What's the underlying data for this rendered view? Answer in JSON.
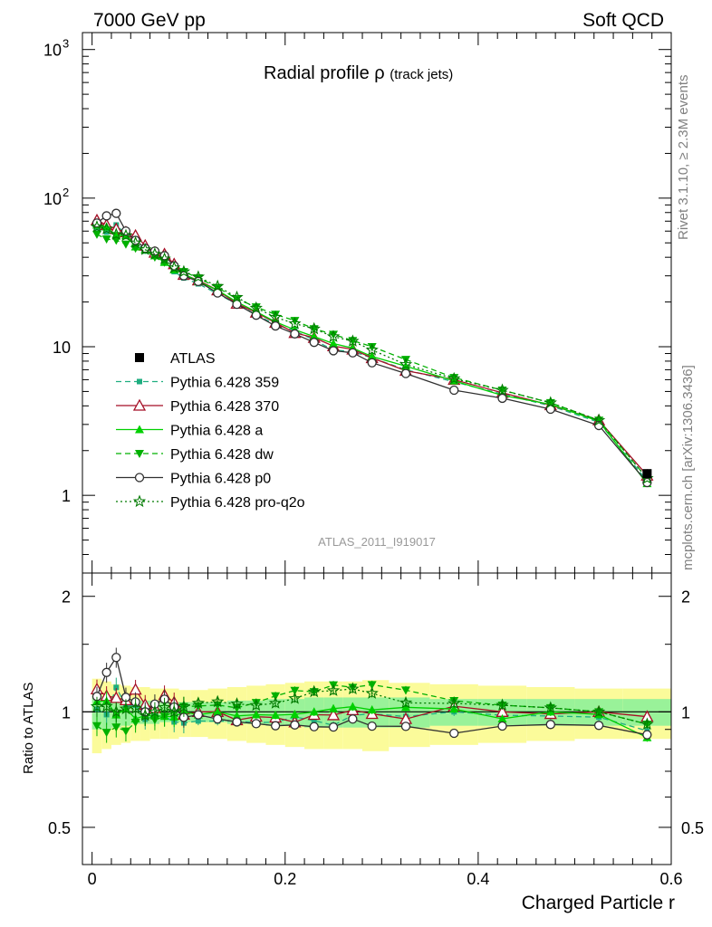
{
  "header": {
    "left": "7000 GeV pp",
    "right": "Soft QCD",
    "side_top": "Rivet 3.1.10, ≥ 2.3M events",
    "side_bottom": "mcplots.cern.ch [arXiv:1306.3436]"
  },
  "chart_data": {
    "type": "line",
    "title_main": "Radial profile",
    "title_symbol": "ρ",
    "title_sub": "(track jets)",
    "analysis_id": "ATLAS_2011_I919017",
    "xlabel": "Charged Particle r",
    "ratio_ylabel": "Ratio to ATLAS",
    "xlim": [
      -0.01,
      0.6
    ],
    "ylim_main": [
      0.3,
      1300
    ],
    "yscale_main": "log",
    "ylim_ratio": [
      0.4,
      2.3
    ],
    "yscale_ratio": "log",
    "x_ticks": [
      "0",
      "0.2",
      "0.4",
      "0.6"
    ],
    "main_y_ticks": [
      "1",
      "10",
      "10^2",
      "10^3"
    ],
    "ratio_y_ticks": [
      "0.5",
      "1",
      "2"
    ],
    "legend_position": "lower-left",
    "x": [
      0.005,
      0.015,
      0.025,
      0.035,
      0.045,
      0.055,
      0.065,
      0.075,
      0.085,
      0.095,
      0.11,
      0.13,
      0.15,
      0.17,
      0.19,
      0.21,
      0.23,
      0.25,
      0.27,
      0.29,
      0.325,
      0.375,
      0.425,
      0.475,
      0.525,
      0.575
    ],
    "band_yellow_half": [
      0.22,
      0.2,
      0.18,
      0.17,
      0.16,
      0.16,
      0.15,
      0.15,
      0.15,
      0.14,
      0.14,
      0.15,
      0.16,
      0.17,
      0.18,
      0.19,
      0.2,
      0.2,
      0.2,
      0.21,
      0.19,
      0.18,
      0.17,
      0.16,
      0.15,
      0.15
    ],
    "band_green_half": [
      0.1,
      0.1,
      0.09,
      0.08,
      0.07,
      0.07,
      0.07,
      0.06,
      0.06,
      0.06,
      0.06,
      0.06,
      0.07,
      0.07,
      0.08,
      0.08,
      0.09,
      0.09,
      0.09,
      0.09,
      0.09,
      0.08,
      0.08,
      0.08,
      0.08,
      0.08
    ],
    "data": {
      "name": "ATLAS",
      "values": [
        62,
        60,
        57,
        55,
        49,
        46,
        42,
        38,
        34,
        31,
        28,
        24,
        20.5,
        17.5,
        15,
        13.2,
        11.7,
        10.3,
        9.5,
        8.5,
        7.2,
        5.8,
        4.9,
        4.1,
        3.2,
        1.4
      ]
    },
    "series": [
      {
        "name": "Pythia 6.428 359",
        "color": "#1fae80",
        "dash": "dashed",
        "marker": "square-small",
        "values": [
          63,
          59,
          66,
          57,
          51,
          44,
          41,
          37,
          32,
          29,
          26.5,
          22.7,
          19.4,
          16.4,
          14.1,
          12.8,
          11.1,
          9.5,
          9.3,
          8.4,
          7.0,
          5.8,
          4.8,
          4.0,
          3.1,
          1.25
        ]
      },
      {
        "name": "Pythia 6.428 370",
        "color": "#a50f26",
        "dash": "solid",
        "marker": "triangle-open",
        "values": [
          71,
          66,
          62,
          59,
          56,
          48,
          43,
          42,
          36,
          30.5,
          28,
          24,
          19.5,
          17,
          14.5,
          12.4,
          11.5,
          10.1,
          9.6,
          8.4,
          6.9,
          6.0,
          4.9,
          4.05,
          3.2,
          1.36
        ]
      },
      {
        "name": "Pythia 6.428 a",
        "color": "#00d000",
        "dash": "solid",
        "marker": "triangle",
        "values": [
          66,
          64,
          56,
          56,
          47,
          45,
          41,
          37,
          33,
          31,
          27.5,
          24,
          20,
          17.2,
          14.7,
          13,
          11.7,
          10.5,
          9.8,
          8.6,
          7.4,
          5.9,
          4.7,
          4.1,
          3.15,
          1.2
        ]
      },
      {
        "name": "Pythia 6.428 dw",
        "color": "#00b000",
        "dash": "dashed",
        "marker": "triangle-down",
        "values": [
          57,
          53,
          52,
          49,
          46,
          45,
          40,
          37,
          34,
          32,
          29,
          25,
          21,
          18.5,
          16.5,
          15,
          13.2,
          12.1,
          11,
          10,
          8.2,
          6.2,
          5.1,
          4.2,
          3.2,
          1.3
        ]
      },
      {
        "name": "Pythia 6.428 p0",
        "color": "#303030",
        "dash": "solid",
        "marker": "circle-open",
        "values": [
          68,
          76,
          79,
          60,
          52,
          46,
          44,
          41,
          35,
          30,
          27.5,
          23,
          19.3,
          16.3,
          13.8,
          12.2,
          10.7,
          9.4,
          9.1,
          7.8,
          6.6,
          5.1,
          4.5,
          3.8,
          2.95,
          1.22
        ]
      },
      {
        "name": "Pythia 6.428 pro-q2o",
        "color": "#007a00",
        "dash": "dotted",
        "marker": "star-open",
        "values": [
          64,
          62,
          57,
          56,
          50,
          45,
          42,
          39,
          34,
          32,
          29.5,
          25.5,
          21.5,
          18.2,
          15.8,
          14.3,
          13.2,
          11.7,
          10.9,
          9.5,
          7.6,
          6.1,
          5.1,
          4.2,
          3.2,
          1.3
        ]
      }
    ]
  }
}
